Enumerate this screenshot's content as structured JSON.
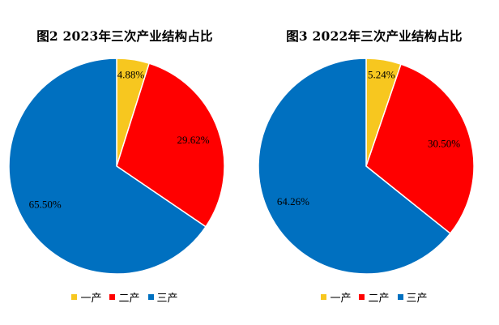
{
  "chart_data": [
    {
      "type": "pie",
      "title": "图2  2023年三次产业结构占比",
      "categories": [
        "一产",
        "二产",
        "三产"
      ],
      "values": [
        4.88,
        29.62,
        65.5
      ],
      "labels": [
        "4.88%",
        "29.62%",
        "65.50%"
      ],
      "colors": [
        "#F7C71F",
        "#FF0000",
        "#0070C0"
      ],
      "legend_position": "bottom"
    },
    {
      "type": "pie",
      "title": "图3  2022年三次产业结构占比",
      "categories": [
        "一产",
        "二产",
        "三产"
      ],
      "values": [
        5.24,
        30.5,
        64.26
      ],
      "labels": [
        "5.24%",
        "30.50%",
        "64.26%"
      ],
      "colors": [
        "#F7C71F",
        "#FF0000",
        "#0070C0"
      ],
      "legend_position": "bottom"
    }
  ]
}
